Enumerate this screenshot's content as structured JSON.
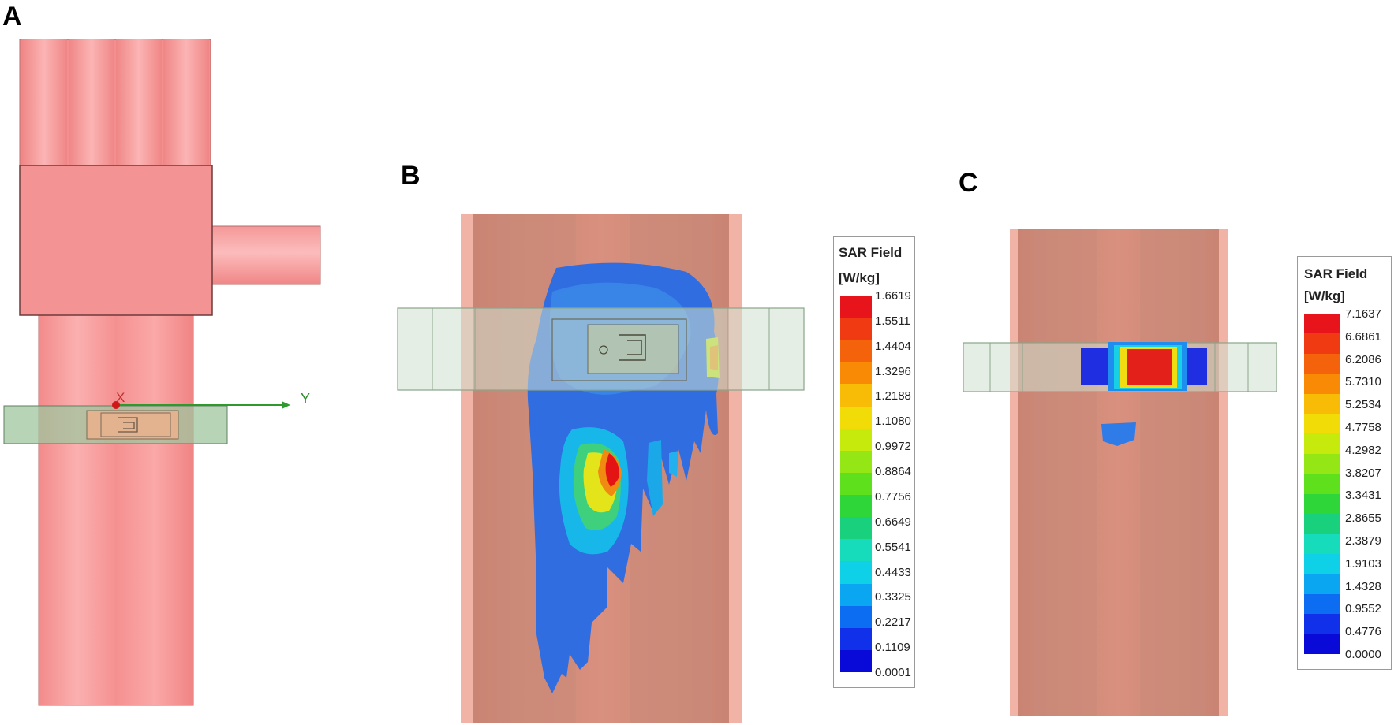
{
  "panels": {
    "a": {
      "label": "A",
      "axis_x": "X",
      "axis_y": "Y"
    },
    "b": {
      "label": "B"
    },
    "c": {
      "label": "C"
    }
  },
  "legend_b": {
    "title": "SAR Field",
    "unit": "[W/kg]",
    "ticks": [
      "1.6619",
      "1.5511",
      "1.4404",
      "1.3296",
      "1.2188",
      "1.1080",
      "0.9972",
      "0.8864",
      "0.7756",
      "0.6649",
      "0.5541",
      "0.4433",
      "0.3325",
      "0.2217",
      "0.1109",
      "0.0001"
    ]
  },
  "legend_c": {
    "title": "SAR Field",
    "unit": "[W/kg]",
    "ticks": [
      "7.1637",
      "6.6861",
      "6.2086",
      "5.7310",
      "5.2534",
      "4.7758",
      "4.2982",
      "3.8207",
      "3.3431",
      "2.8655",
      "2.3879",
      "1.9103",
      "1.4328",
      "0.9552",
      "0.4776",
      "0.0000"
    ]
  },
  "colors": {
    "scale": [
      "#e8141c",
      "#f03a12",
      "#f5620c",
      "#f98a06",
      "#f8bb06",
      "#f2dc08",
      "#c6ea0c",
      "#94e614",
      "#5ee01c",
      "#2ed63a",
      "#19d07c",
      "#16dcbc",
      "#0ed0e6",
      "#0aa6f2",
      "#0c6cf2",
      "#1030ea",
      "#0a0ad8"
    ],
    "body": "#f48f8f",
    "body_dark": "#cf8a7c"
  }
}
